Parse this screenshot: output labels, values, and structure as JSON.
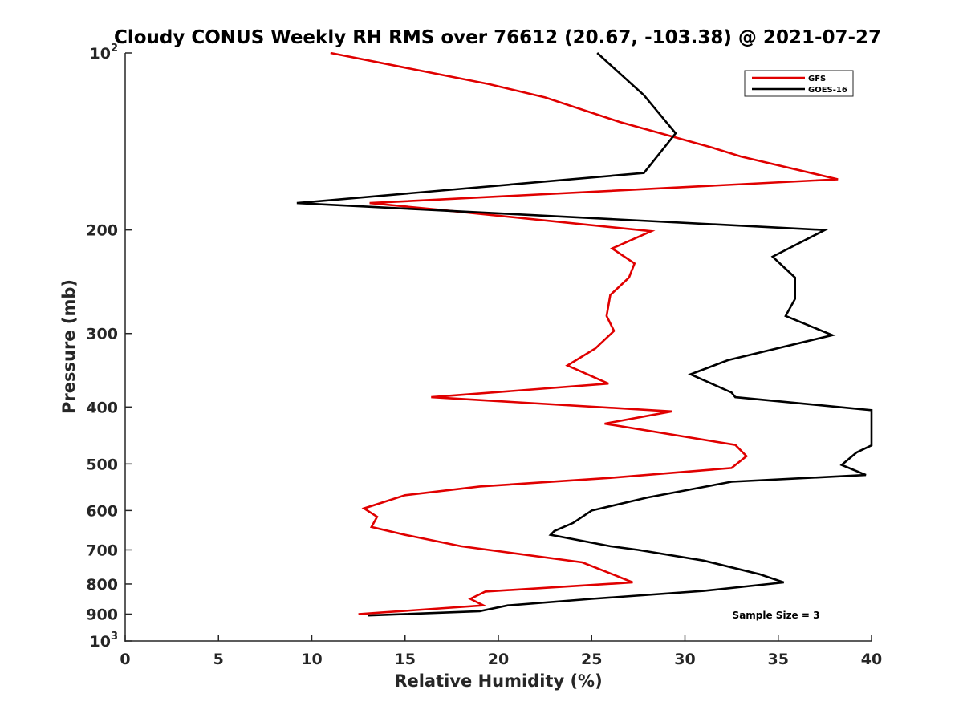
{
  "chart_data": {
    "type": "line",
    "title": "Cloudy CONUS Weekly RH RMS over 76612 (20.67, -103.38) @ 2021-07-27",
    "xlabel": "Relative Humidity (%)",
    "ylabel": "Pressure (mb)",
    "xlim": [
      0,
      40
    ],
    "ylim": [
      100,
      1000
    ],
    "yscale": "log",
    "y_inverted": true,
    "xticks": [
      0,
      5,
      10,
      15,
      20,
      25,
      30,
      35,
      40
    ],
    "xtick_labels": [
      "0",
      "5",
      "10",
      "15",
      "20",
      "25",
      "30",
      "35",
      "40"
    ],
    "yticks": [
      {
        "value": 100,
        "base": "10",
        "exp": "2"
      },
      {
        "value": 200,
        "text": "200"
      },
      {
        "value": 300,
        "text": "300"
      },
      {
        "value": 400,
        "text": "400"
      },
      {
        "value": 500,
        "text": "500"
      },
      {
        "value": 600,
        "text": "600"
      },
      {
        "value": 700,
        "text": "700"
      },
      {
        "value": 800,
        "text": "800"
      },
      {
        "value": 900,
        "text": "900"
      },
      {
        "value": 1000,
        "base": "10",
        "exp": "3"
      }
    ],
    "legend_position": "top-right",
    "annotation": "Sample Size = 3",
    "series": [
      {
        "name": "GFS",
        "color": "#e00000",
        "points": [
          [
            11.0,
            100
          ],
          [
            19.5,
            113
          ],
          [
            22.5,
            119
          ],
          [
            26.5,
            131
          ],
          [
            31.5,
            145
          ],
          [
            33.0,
            150
          ],
          [
            38.2,
            164
          ],
          [
            13.1,
            180
          ],
          [
            17.0,
            185
          ],
          [
            28.2,
            201
          ],
          [
            26.1,
            215
          ],
          [
            27.3,
            228
          ],
          [
            27.0,
            241
          ],
          [
            26.0,
            258
          ],
          [
            25.8,
            280
          ],
          [
            26.2,
            297
          ],
          [
            25.2,
            318
          ],
          [
            23.7,
            340
          ],
          [
            25.9,
            365
          ],
          [
            16.4,
            385
          ],
          [
            29.3,
            407
          ],
          [
            25.7,
            427
          ],
          [
            32.7,
            464
          ],
          [
            33.3,
            485
          ],
          [
            32.5,
            508
          ],
          [
            26.0,
            528
          ],
          [
            19.0,
            546
          ],
          [
            15.0,
            565
          ],
          [
            12.8,
            595
          ],
          [
            13.5,
            615
          ],
          [
            13.2,
            640
          ],
          [
            15.0,
            660
          ],
          [
            18.0,
            690
          ],
          [
            24.5,
            735
          ],
          [
            26.2,
            772
          ],
          [
            27.2,
            795
          ],
          [
            19.3,
            824
          ],
          [
            18.5,
            848
          ],
          [
            19.2,
            870
          ],
          [
            12.5,
            900
          ]
        ]
      },
      {
        "name": "GOES-16",
        "color": "#000000",
        "points": [
          [
            25.3,
            100
          ],
          [
            27.8,
            118
          ],
          [
            29.5,
            137
          ],
          [
            27.8,
            160
          ],
          [
            9.2,
            180
          ],
          [
            37.5,
            200
          ],
          [
            34.7,
            222
          ],
          [
            35.9,
            241
          ],
          [
            35.9,
            262
          ],
          [
            35.4,
            280
          ],
          [
            37.9,
            302
          ],
          [
            32.3,
            333
          ],
          [
            30.3,
            352
          ],
          [
            32.5,
            378
          ],
          [
            32.7,
            385
          ],
          [
            40.0,
            405
          ],
          [
            40.1,
            465
          ],
          [
            39.2,
            478
          ],
          [
            38.4,
            502
          ],
          [
            39.7,
            522
          ],
          [
            32.5,
            536
          ],
          [
            28.0,
            570
          ],
          [
            25.0,
            600
          ],
          [
            24.0,
            630
          ],
          [
            23.0,
            650
          ],
          [
            22.8,
            660
          ],
          [
            26.0,
            690
          ],
          [
            27.5,
            700
          ],
          [
            31.0,
            730
          ],
          [
            34.0,
            770
          ],
          [
            35.3,
            795
          ],
          [
            31.0,
            822
          ],
          [
            25.0,
            848
          ],
          [
            20.5,
            870
          ],
          [
            19.0,
            890
          ],
          [
            13.0,
            905
          ]
        ]
      }
    ]
  }
}
